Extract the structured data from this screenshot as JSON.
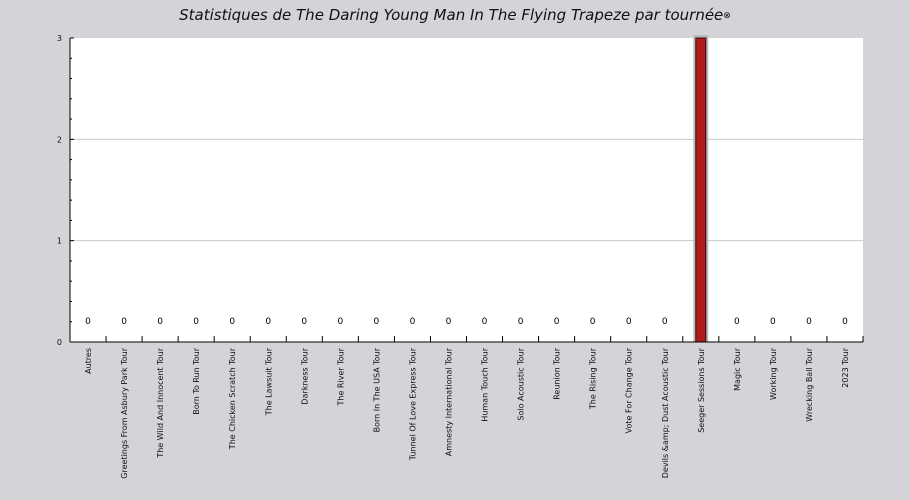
{
  "chart_data": {
    "type": "bar",
    "title": "Statistiques de The Daring Young Man In The Flying Trapeze par tournée",
    "xlabel": "",
    "ylabel": "",
    "ylim": [
      0,
      3
    ],
    "y_ticks": [
      "0",
      "1",
      "2",
      "3"
    ],
    "grid": true,
    "categories": [
      "Autres",
      "Greetings From Asbury Park Tour",
      "The Wild And Innocent Tour",
      "Born To Run Tour",
      "The Chicken Scratch Tour",
      "The Lawsuit Tour",
      "Darkness Tour",
      "The River Tour",
      "Born In The USA Tour",
      "Tunnel Of Love Express Tour",
      "Amnesty International Tour",
      "Human Touch Tour",
      "Solo Acoustic Tour",
      "Reunion Tour",
      "The Rising Tour",
      "Vote For Change Tour",
      "Devils &amp; Dust Acoustic Tour",
      "Seeger Sessions Tour",
      "Magic Tour",
      "Working Tour",
      "Wrecking Ball Tour",
      "2023 Tour"
    ],
    "values": [
      0,
      0,
      0,
      0,
      0,
      0,
      0,
      0,
      0,
      0,
      0,
      0,
      0,
      0,
      0,
      0,
      0,
      3,
      0,
      0,
      0,
      0
    ],
    "data_labels": [
      "0",
      "0",
      "0",
      "0",
      "0",
      "0",
      "0",
      "0",
      "0",
      "0",
      "0",
      "0",
      "0",
      "0",
      "0",
      "0",
      "0",
      "",
      "0",
      "0",
      "0",
      "0"
    ],
    "bar_color": "#b01c1c",
    "highlight_color": "#b9b9c0"
  },
  "colors": {
    "background": "#d4d3d8",
    "plot_background": "#ffffff",
    "grid": "#c8c8c8"
  },
  "title_icon": "close-icon"
}
